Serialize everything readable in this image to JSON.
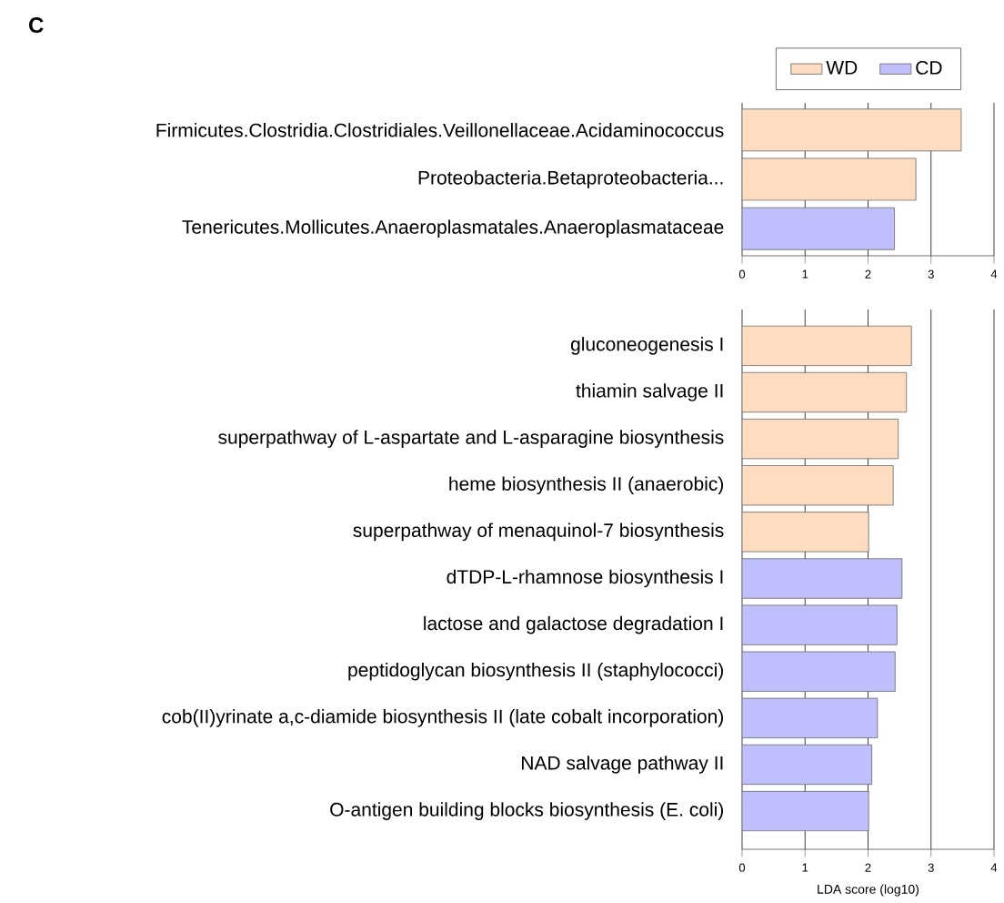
{
  "chart_data": [
    {
      "type": "bar",
      "orientation": "horizontal",
      "annotations": [
        "C"
      ],
      "categories": [
        "Firmicutes.Clostridia.Clostridiales.Veillonellaceae.Acidaminococcus",
        "Proteobacteria.Betaproteobacteria...",
        "Tenericutes.Mollicutes.Anaeroplasmatales.Anaeroplasmataceae"
      ],
      "series": [
        {
          "name": "WD",
          "color": "#fddcbf",
          "values": [
            3.48,
            2.76,
            null
          ]
        },
        {
          "name": "CD",
          "color": "#bfbffd",
          "values": [
            null,
            null,
            2.42
          ]
        }
      ],
      "xlim": [
        0,
        4
      ],
      "xticks": [
        0,
        1,
        2,
        3,
        4
      ],
      "grid": "x",
      "legend": "top right"
    },
    {
      "type": "bar",
      "orientation": "horizontal",
      "xlabel": "LDA score (log10)",
      "categories": [
        "gluconeogenesis I",
        "thiamin salvage II",
        "superpathway of L-aspartate and L-asparagine biosynthesis",
        "heme biosynthesis II (anaerobic)",
        "superpathway of menaquinol-7 biosynthesis",
        "dTDP-L-rhamnose biosynthesis I",
        "lactose and galactose degradation I",
        "peptidoglycan biosynthesis II (staphylococci)",
        "cob(II)yrinate a,c-diamide biosynthesis II (late cobalt incorporation)",
        "NAD salvage pathway II",
        "O-antigen building blocks biosynthesis (E. coli)"
      ],
      "series": [
        {
          "color": "#fddcbf",
          "values": [
            2.69,
            2.61,
            2.48,
            2.4,
            2.01,
            null,
            null,
            null,
            null,
            null,
            null
          ]
        },
        {
          "color": "#bfbffd",
          "values": [
            null,
            null,
            null,
            null,
            null,
            2.54,
            2.46,
            2.43,
            2.15,
            2.06,
            2.01
          ]
        }
      ],
      "xlim": [
        0,
        4
      ],
      "xticks": [
        0,
        1,
        2,
        3,
        4
      ],
      "grid": "x"
    }
  ]
}
